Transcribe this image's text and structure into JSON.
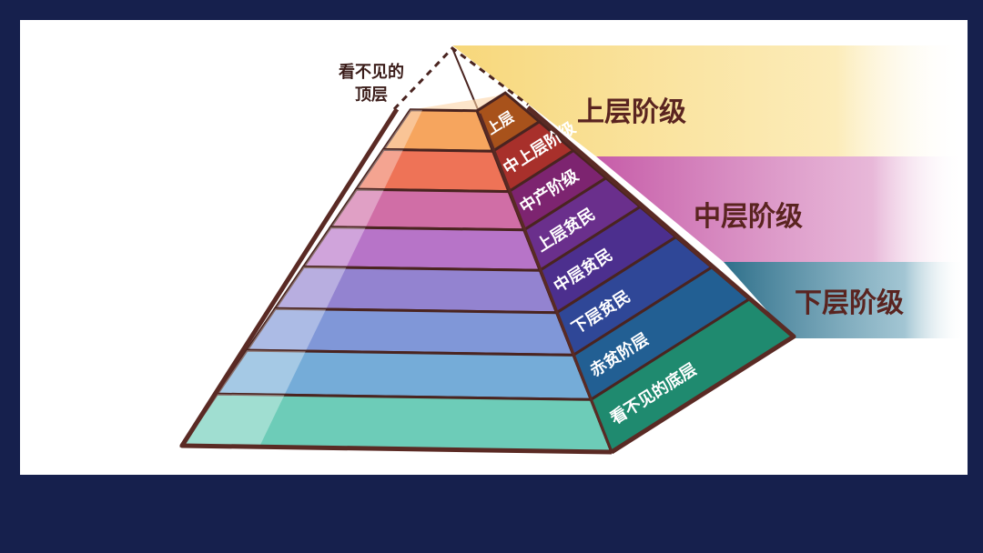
{
  "colors": {
    "background": "#16204d",
    "panel": "#ffffff",
    "outline": "#5a2a24"
  },
  "invisible_top": {
    "line1": "看不见的",
    "line2": "顶层"
  },
  "bands": [
    {
      "label": "上层阶级",
      "color": "#f7d77a"
    },
    {
      "label": "中层阶级",
      "color": "#c65ca8"
    },
    {
      "label": "下层阶级",
      "color": "#2e6f8a"
    }
  ],
  "layers": [
    {
      "label": "上层",
      "front": "#f6a55e",
      "side": "#a8521b"
    },
    {
      "label": "中上层阶级",
      "front": "#ee7357",
      "side": "#a8302b"
    },
    {
      "label": "中产阶级",
      "front": "#d06ea6",
      "side": "#7d2470"
    },
    {
      "label": "上层贫民",
      "front": "#b774c8",
      "side": "#6a2f8c"
    },
    {
      "label": "中层贫民",
      "front": "#9383d0",
      "side": "#4c2f8e"
    },
    {
      "label": "下层贫民",
      "front": "#8097d8",
      "side": "#2f4797"
    },
    {
      "label": "赤贫阶层",
      "front": "#75acd8",
      "side": "#225f93"
    },
    {
      "label": "看不见的底层",
      "front": "#6dccb8",
      "side": "#1f8a6f"
    }
  ]
}
